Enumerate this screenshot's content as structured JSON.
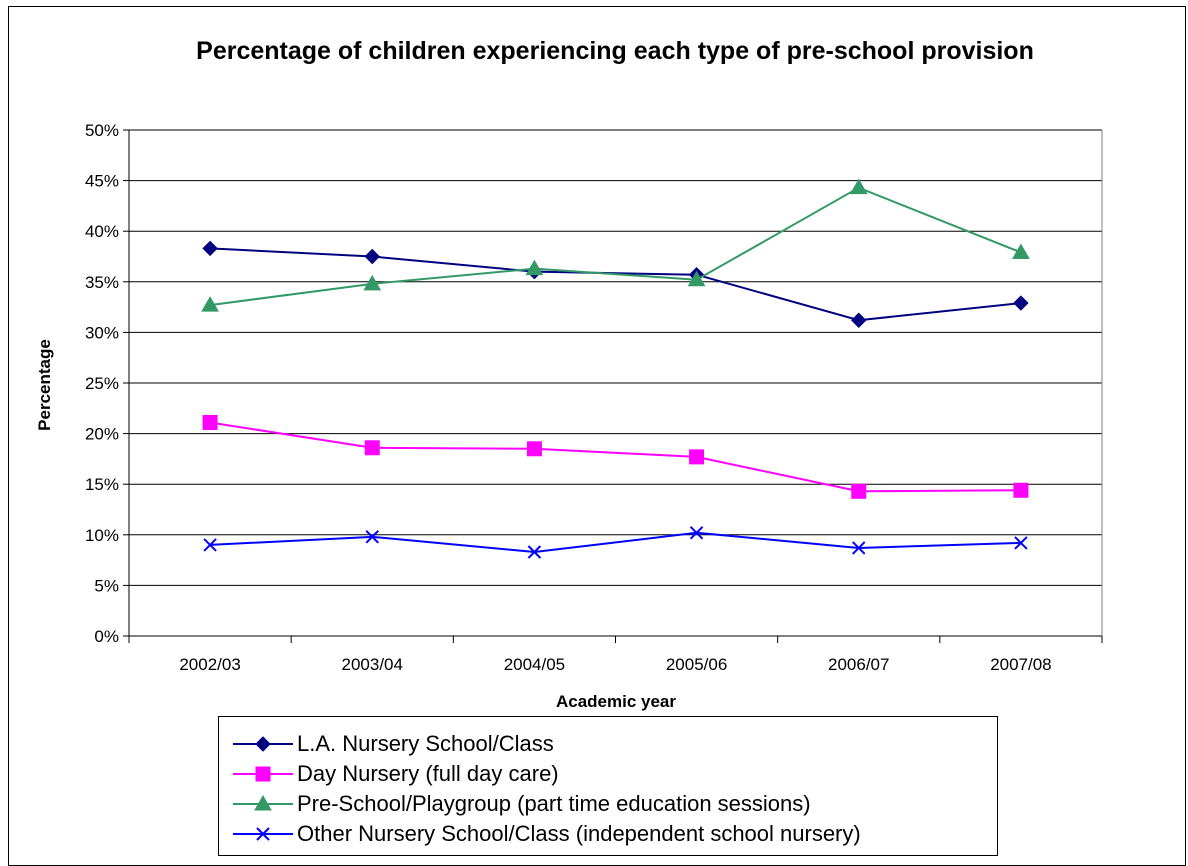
{
  "chart_data": {
    "type": "line",
    "title": "Percentage of children experiencing each type of pre-school provision",
    "xlabel": "Academic year",
    "ylabel": "Percentage",
    "categories": [
      "2002/03",
      "2003/04",
      "2004/05",
      "2005/06",
      "2006/07",
      "2007/08"
    ],
    "ylim": [
      0,
      50
    ],
    "yticks": [
      "0%",
      "5%",
      "10%",
      "15%",
      "20%",
      "25%",
      "30%",
      "35%",
      "40%",
      "45%",
      "50%"
    ],
    "grid": "horizontal",
    "legend_position": "bottom",
    "series": [
      {
        "name": "L.A. Nursery School/Class",
        "values": [
          38.3,
          37.5,
          36.0,
          35.7,
          31.2,
          32.9
        ],
        "color": "#000080",
        "marker": "diamond"
      },
      {
        "name": "Day Nursery (full day care)",
        "values": [
          21.1,
          18.6,
          18.5,
          17.7,
          14.3,
          14.4
        ],
        "color": "#ff00ff",
        "marker": "square"
      },
      {
        "name": "Pre-School/Playgroup (part time education sessions)",
        "values": [
          32.7,
          34.8,
          36.3,
          35.2,
          44.3,
          37.9
        ],
        "color": "#339966",
        "marker": "triangle"
      },
      {
        "name": "Other Nursery School/Class (independent school nursery)",
        "values": [
          9.0,
          9.8,
          8.3,
          10.2,
          8.7,
          9.2
        ],
        "color": "#0000ff",
        "marker": "x"
      }
    ]
  }
}
